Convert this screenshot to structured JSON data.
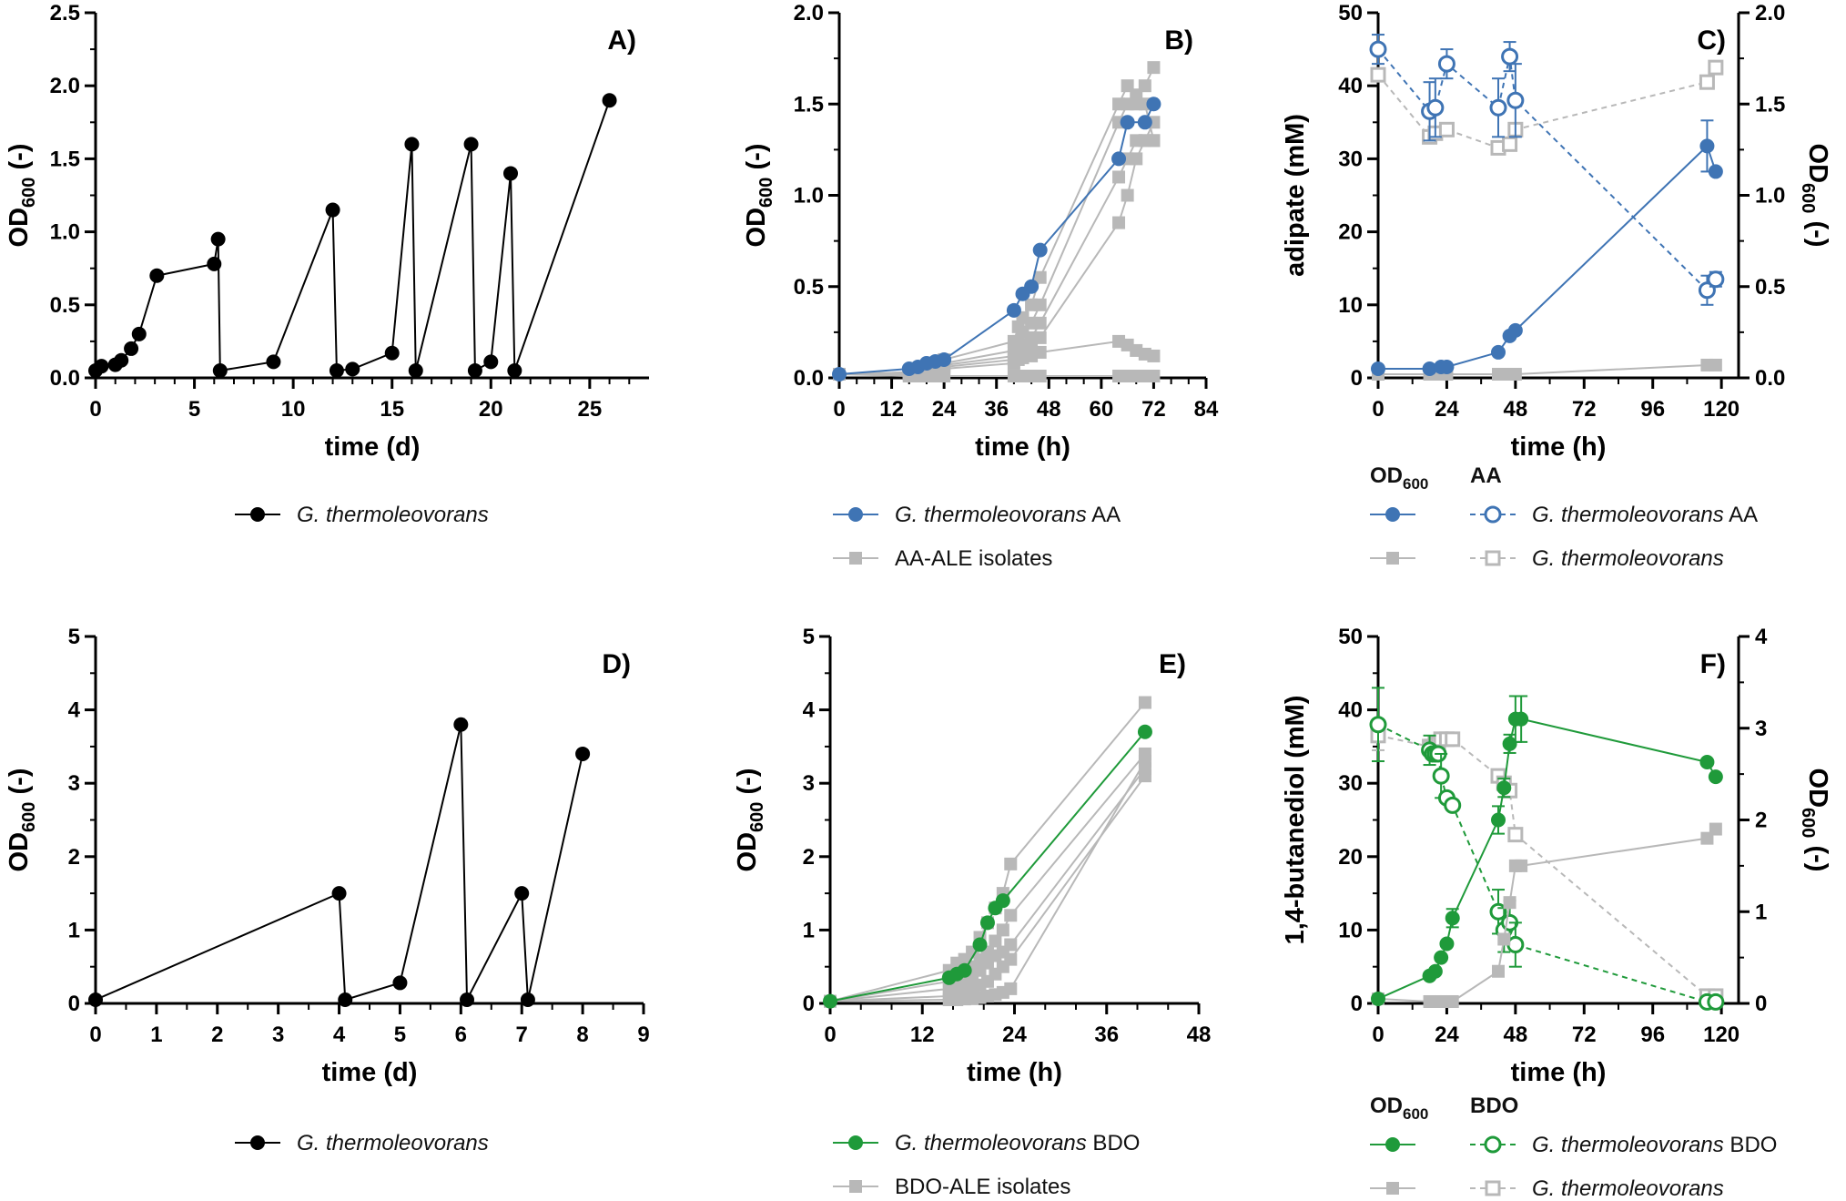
{
  "colors": {
    "black": "#000000",
    "blue": "#3f74b4",
    "green": "#1f9a3a",
    "grey": "#b8b8b8"
  },
  "chart_data": [
    {
      "panel": "A)",
      "type": "line",
      "xlabel": "time (d)",
      "ylabel": "OD600 (-)",
      "xlim": [
        0,
        28
      ],
      "ylim": [
        0,
        2.5
      ],
      "xticks": [
        "0",
        "5",
        "10",
        "15",
        "20",
        "25"
      ],
      "yticks": [
        "0.0",
        "0.5",
        "1.0",
        "1.5",
        "2.0",
        "2.5"
      ],
      "legend": [
        {
          "label": "G. thermoleovorans",
          "italic": true,
          "color": "#000000",
          "marker": "circle"
        }
      ],
      "series": [
        {
          "name": "G. thermoleovorans",
          "color": "#000000",
          "marker": "circle",
          "x": [
            0,
            0.3,
            1,
            1.3,
            1.8,
            2.2,
            3.1,
            6,
            6.2,
            6.3,
            9,
            12,
            12.2,
            13,
            15,
            16,
            16.2,
            19,
            19.2,
            20,
            21,
            21.2,
            26
          ],
          "y": [
            0.05,
            0.08,
            0.09,
            0.12,
            0.2,
            0.3,
            0.7,
            0.78,
            0.95,
            0.05,
            0.11,
            1.15,
            0.05,
            0.06,
            0.17,
            1.6,
            0.05,
            1.6,
            0.05,
            0.11,
            1.4,
            0.05,
            1.9
          ]
        }
      ]
    },
    {
      "panel": "B)",
      "type": "line",
      "xlabel": "time (h)",
      "ylabel": "OD600 (-)",
      "xlim": [
        0,
        84
      ],
      "ylim": [
        0,
        2.0
      ],
      "xticks": [
        "0",
        "12",
        "24",
        "36",
        "48",
        "60",
        "72",
        "84"
      ],
      "yticks": [
        "0.0",
        "0.5",
        "1.0",
        "1.5",
        "2.0"
      ],
      "legend": [
        {
          "italic_part": "G. thermoleovorans",
          "plain_part": " AA",
          "color": "#3f74b4",
          "marker": "circle"
        },
        {
          "plain_part": "AA-ALE isolates",
          "color": "#b8b8b8",
          "marker": "square"
        }
      ],
      "series": [
        {
          "color": "#b8b8b8",
          "marker": "square",
          "x": [
            0,
            16,
            18,
            20,
            22,
            24,
            40,
            41,
            42,
            44,
            46,
            64,
            66,
            68,
            70,
            72
          ],
          "y": [
            0.02,
            0.03,
            0.05,
            0.06,
            0.08,
            0.1,
            0.2,
            0.28,
            0.33,
            0.4,
            0.55,
            1.5,
            1.6,
            1.55,
            1.6,
            1.7
          ]
        },
        {
          "color": "#b8b8b8",
          "marker": "square",
          "x": [
            0,
            16,
            18,
            20,
            22,
            24,
            40,
            41,
            42,
            44,
            46,
            64,
            66,
            68,
            70,
            72
          ],
          "y": [
            0.02,
            0.03,
            0.04,
            0.05,
            0.06,
            0.08,
            0.15,
            0.2,
            0.25,
            0.3,
            0.4,
            1.4,
            1.5,
            1.5,
            1.5,
            1.3
          ]
        },
        {
          "color": "#b8b8b8",
          "marker": "square",
          "x": [
            0,
            16,
            18,
            20,
            22,
            24,
            40,
            41,
            42,
            44,
            46,
            64,
            66,
            68,
            70,
            72
          ],
          "y": [
            0.02,
            0.03,
            0.04,
            0.05,
            0.06,
            0.07,
            0.12,
            0.15,
            0.18,
            0.22,
            0.3,
            1.1,
            1.2,
            1.3,
            1.3,
            1.3
          ]
        },
        {
          "color": "#b8b8b8",
          "marker": "square",
          "x": [
            0,
            16,
            18,
            20,
            22,
            24,
            40,
            41,
            42,
            44,
            46,
            64,
            66,
            68,
            70,
            72
          ],
          "y": [
            0.02,
            0.03,
            0.03,
            0.04,
            0.05,
            0.06,
            0.1,
            0.12,
            0.14,
            0.17,
            0.22,
            0.85,
            1.0,
            1.2,
            1.3,
            1.4
          ]
        },
        {
          "color": "#b8b8b8",
          "marker": "square",
          "x": [
            0,
            16,
            18,
            20,
            22,
            24,
            40,
            41,
            42,
            44,
            46,
            64,
            66,
            68,
            70,
            72
          ],
          "y": [
            0.02,
            0.02,
            0.03,
            0.03,
            0.04,
            0.05,
            0.08,
            0.1,
            0.11,
            0.12,
            0.14,
            0.2,
            0.18,
            0.15,
            0.13,
            0.12
          ]
        },
        {
          "color": "#b8b8b8",
          "marker": "square",
          "x": [
            0,
            16,
            18,
            20,
            22,
            24,
            40,
            41,
            42,
            44,
            46,
            64,
            66,
            68,
            70,
            72
          ],
          "y": [
            0.02,
            0.01,
            0.01,
            0.01,
            0.01,
            0.01,
            0.01,
            0.01,
            0.01,
            0.01,
            0.01,
            0.01,
            0.01,
            0.01,
            0.01,
            0.01
          ]
        },
        {
          "name": "G. thermoleovorans AA",
          "color": "#3f74b4",
          "marker": "circle",
          "x": [
            0,
            16,
            18,
            20,
            22,
            24,
            40,
            42,
            44,
            46,
            64,
            66,
            70,
            72
          ],
          "y": [
            0.02,
            0.05,
            0.06,
            0.08,
            0.09,
            0.1,
            0.37,
            0.46,
            0.5,
            0.7,
            1.2,
            1.4,
            1.4,
            1.5
          ]
        }
      ]
    },
    {
      "panel": "C)",
      "type": "line",
      "xlabel": "time (h)",
      "ylabel": "adipate (mM)",
      "y2label": "OD600 (-)",
      "xlim": [
        0,
        126
      ],
      "ylim": [
        0,
        50
      ],
      "y2lim": [
        0,
        2.0
      ],
      "xticks": [
        "0",
        "24",
        "48",
        "72",
        "96",
        "120"
      ],
      "yticks": [
        "0",
        "10",
        "20",
        "30",
        "40",
        "50"
      ],
      "y2ticks": [
        "0.0",
        "0.5",
        "1.0",
        "1.5",
        "2.0"
      ],
      "legend_headers": [
        "OD600",
        "AA"
      ],
      "legend": [
        {
          "italic_part": "G. thermoleovorans",
          "plain_part": " AA",
          "color": "#3f74b4"
        },
        {
          "italic_part": "G. thermoleovorans",
          "plain_part": "",
          "color": "#b8b8b8"
        }
      ],
      "series": [
        {
          "axis": "left",
          "style": "dashed",
          "color": "#b8b8b8",
          "marker": "open-square",
          "x": [
            0,
            18,
            20,
            24,
            42,
            46,
            48,
            115,
            118
          ],
          "y": [
            41.5,
            33,
            33.5,
            34,
            31.5,
            32,
            34,
            40.5,
            42.5
          ]
        },
        {
          "axis": "left",
          "style": "dashed",
          "color": "#3f74b4",
          "marker": "open-circle",
          "x": [
            0,
            18,
            20,
            24,
            42,
            46,
            48,
            115,
            118
          ],
          "y": [
            45,
            36.5,
            37,
            43,
            37,
            44,
            38,
            12,
            13.5
          ],
          "err": [
            2,
            4,
            4,
            2,
            4,
            2,
            5,
            2,
            1
          ]
        },
        {
          "axis": "right",
          "style": "solid",
          "color": "#b8b8b8",
          "marker": "square",
          "x": [
            0,
            18,
            22,
            24,
            42,
            46,
            48,
            115,
            118
          ],
          "y": [
            0.02,
            0.02,
            0.02,
            0.02,
            0.02,
            0.02,
            0.02,
            0.07,
            0.07
          ]
        },
        {
          "axis": "right",
          "style": "solid",
          "color": "#3f74b4",
          "marker": "circle",
          "x": [
            0,
            18,
            22,
            24,
            42,
            46,
            48,
            115,
            118
          ],
          "y": [
            0.05,
            0.05,
            0.06,
            0.06,
            0.14,
            0.23,
            0.26,
            1.27,
            1.13
          ],
          "err": [
            0,
            0,
            0,
            0,
            0,
            0,
            0,
            0.14,
            0
          ]
        }
      ]
    },
    {
      "panel": "D)",
      "type": "line",
      "xlabel": "time (d)",
      "ylabel": "OD600 (-)",
      "xlim": [
        0,
        9
      ],
      "ylim": [
        0,
        5
      ],
      "xticks": [
        "0",
        "1",
        "2",
        "3",
        "4",
        "5",
        "6",
        "7",
        "8",
        "9"
      ],
      "yticks": [
        "0",
        "1",
        "2",
        "3",
        "4",
        "5"
      ],
      "legend": [
        {
          "label": "G. thermoleovorans",
          "italic": true,
          "color": "#000000",
          "marker": "circle"
        }
      ],
      "series": [
        {
          "name": "G. thermoleovorans",
          "color": "#000000",
          "marker": "circle",
          "x": [
            0,
            4,
            4.1,
            5,
            6,
            6.1,
            7,
            7.1,
            8
          ],
          "y": [
            0.05,
            1.5,
            0.05,
            0.28,
            3.8,
            0.05,
            1.5,
            0.05,
            3.4
          ]
        }
      ]
    },
    {
      "panel": "E)",
      "type": "line",
      "xlabel": "time (h)",
      "ylabel": "OD600 (-)",
      "xlim": [
        0,
        48
      ],
      "ylim": [
        0,
        5
      ],
      "xticks": [
        "0",
        "12",
        "24",
        "36",
        "48"
      ],
      "yticks": [
        "0",
        "1",
        "2",
        "3",
        "4",
        "5"
      ],
      "legend": [
        {
          "italic_part": "G. thermoleovorans",
          "plain_part": " BDO",
          "color": "#1f9a3a",
          "marker": "circle"
        },
        {
          "plain_part": "BDO-ALE isolates",
          "color": "#b8b8b8",
          "marker": "square"
        }
      ],
      "series": [
        {
          "color": "#b8b8b8",
          "marker": "square",
          "x": [
            0,
            15.5,
            16.5,
            17.5,
            18.5,
            19.5,
            20.5,
            21.5,
            22.5,
            23.5,
            41
          ],
          "y": [
            0.03,
            0.45,
            0.55,
            0.6,
            0.7,
            0.9,
            1.1,
            1.3,
            1.5,
            1.9,
            4.1
          ]
        },
        {
          "color": "#b8b8b8",
          "marker": "square",
          "x": [
            0,
            15.5,
            16.5,
            17.5,
            18.5,
            19.5,
            20.5,
            21.5,
            22.5,
            23.5,
            41
          ],
          "y": [
            0.03,
            0.3,
            0.35,
            0.45,
            0.5,
            0.6,
            0.7,
            0.85,
            1.0,
            1.2,
            3.4
          ]
        },
        {
          "color": "#b8b8b8",
          "marker": "square",
          "x": [
            0,
            15.5,
            16.5,
            17.5,
            18.5,
            19.5,
            20.5,
            21.5,
            22.5,
            23.5,
            41
          ],
          "y": [
            0.03,
            0.2,
            0.25,
            0.3,
            0.35,
            0.45,
            0.55,
            0.65,
            0.7,
            0.8,
            3.2
          ]
        },
        {
          "color": "#b8b8b8",
          "marker": "square",
          "x": [
            0,
            15.5,
            16.5,
            17.5,
            18.5,
            19.5,
            20.5,
            21.5,
            22.5,
            23.5,
            41
          ],
          "y": [
            0.03,
            0.1,
            0.12,
            0.15,
            0.2,
            0.25,
            0.3,
            0.4,
            0.5,
            0.6,
            3.1
          ]
        },
        {
          "color": "#b8b8b8",
          "marker": "square",
          "x": [
            0,
            15.5,
            16.5,
            17.5,
            18.5,
            19.5,
            20.5,
            21.5,
            22.5,
            23.5,
            41
          ],
          "y": [
            0.03,
            0.05,
            0.05,
            0.06,
            0.07,
            0.08,
            0.1,
            0.12,
            0.15,
            0.2,
            3.3
          ]
        },
        {
          "name": "G. thermoleovorans BDO",
          "color": "#1f9a3a",
          "marker": "circle",
          "x": [
            0,
            15.5,
            16.5,
            17.5,
            19.5,
            20.5,
            21.5,
            22.5,
            41
          ],
          "y": [
            0.03,
            0.35,
            0.4,
            0.45,
            0.8,
            1.1,
            1.3,
            1.4,
            3.7
          ]
        }
      ]
    },
    {
      "panel": "F)",
      "type": "line",
      "xlabel": "time (h)",
      "ylabel": "1,4-butanediol (mM)",
      "y2label": "OD600 (-)",
      "xlim": [
        0,
        126
      ],
      "ylim": [
        0,
        50
      ],
      "y2lim": [
        0,
        4
      ],
      "xticks": [
        "0",
        "24",
        "48",
        "72",
        "96",
        "120"
      ],
      "yticks": [
        "0",
        "10",
        "20",
        "30",
        "40",
        "50"
      ],
      "y2ticks": [
        "0",
        "1",
        "2",
        "3",
        "4"
      ],
      "legend_headers": [
        "OD600",
        "BDO"
      ],
      "legend": [
        {
          "italic_part": "G. thermoleovorans",
          "plain_part": " BDO",
          "color": "#1f9a3a"
        },
        {
          "italic_part": "G. thermoleovorans",
          "plain_part": "",
          "color": "#b8b8b8"
        }
      ],
      "series": [
        {
          "axis": "left",
          "style": "dashed",
          "color": "#b8b8b8",
          "marker": "open-square",
          "x": [
            0,
            18,
            19,
            20,
            21,
            22,
            24,
            26,
            42,
            44,
            46,
            48,
            115,
            118
          ],
          "y": [
            36.5,
            35,
            35,
            35.5,
            35.5,
            36,
            36,
            36,
            31,
            30,
            29,
            23,
            1,
            1
          ],
          "err": [
            2,
            0,
            0,
            0,
            0,
            0,
            0,
            0,
            0,
            0,
            0,
            0,
            0,
            0
          ]
        },
        {
          "axis": "left",
          "style": "dashed",
          "color": "#1f9a3a",
          "marker": "open-circle",
          "x": [
            0,
            18,
            19,
            20,
            21,
            22,
            24,
            26,
            42,
            44,
            46,
            48,
            115,
            118
          ],
          "y": [
            38,
            34.5,
            34,
            34,
            34,
            31,
            28,
            27,
            12.5,
            10,
            11,
            8,
            0.2,
            0.2
          ],
          "err": [
            5,
            2,
            0,
            0,
            0,
            3,
            0,
            0,
            3,
            3,
            3,
            3,
            0,
            0
          ]
        },
        {
          "axis": "right",
          "style": "solid",
          "color": "#b8b8b8",
          "marker": "square",
          "x": [
            0,
            18,
            20,
            22,
            24,
            26,
            42,
            44,
            46,
            48,
            50,
            115,
            118
          ],
          "y": [
            0.05,
            0.02,
            0.02,
            0.02,
            0.02,
            0.02,
            0.35,
            0.7,
            1.1,
            1.5,
            1.5,
            1.8,
            1.9
          ]
        },
        {
          "axis": "right",
          "style": "solid",
          "color": "#1f9a3a",
          "marker": "circle",
          "x": [
            0,
            18,
            20,
            22,
            24,
            26,
            42,
            44,
            46,
            48,
            50,
            115,
            118
          ],
          "y": [
            0.05,
            0.3,
            0.35,
            0.5,
            0.65,
            0.93,
            2.0,
            2.35,
            2.83,
            3.1,
            3.1,
            2.63,
            2.47
          ],
          "err": [
            0,
            0,
            0,
            0,
            0,
            0.1,
            0.15,
            0.1,
            0.1,
            0.25,
            0.25,
            0,
            0
          ]
        }
      ]
    }
  ]
}
